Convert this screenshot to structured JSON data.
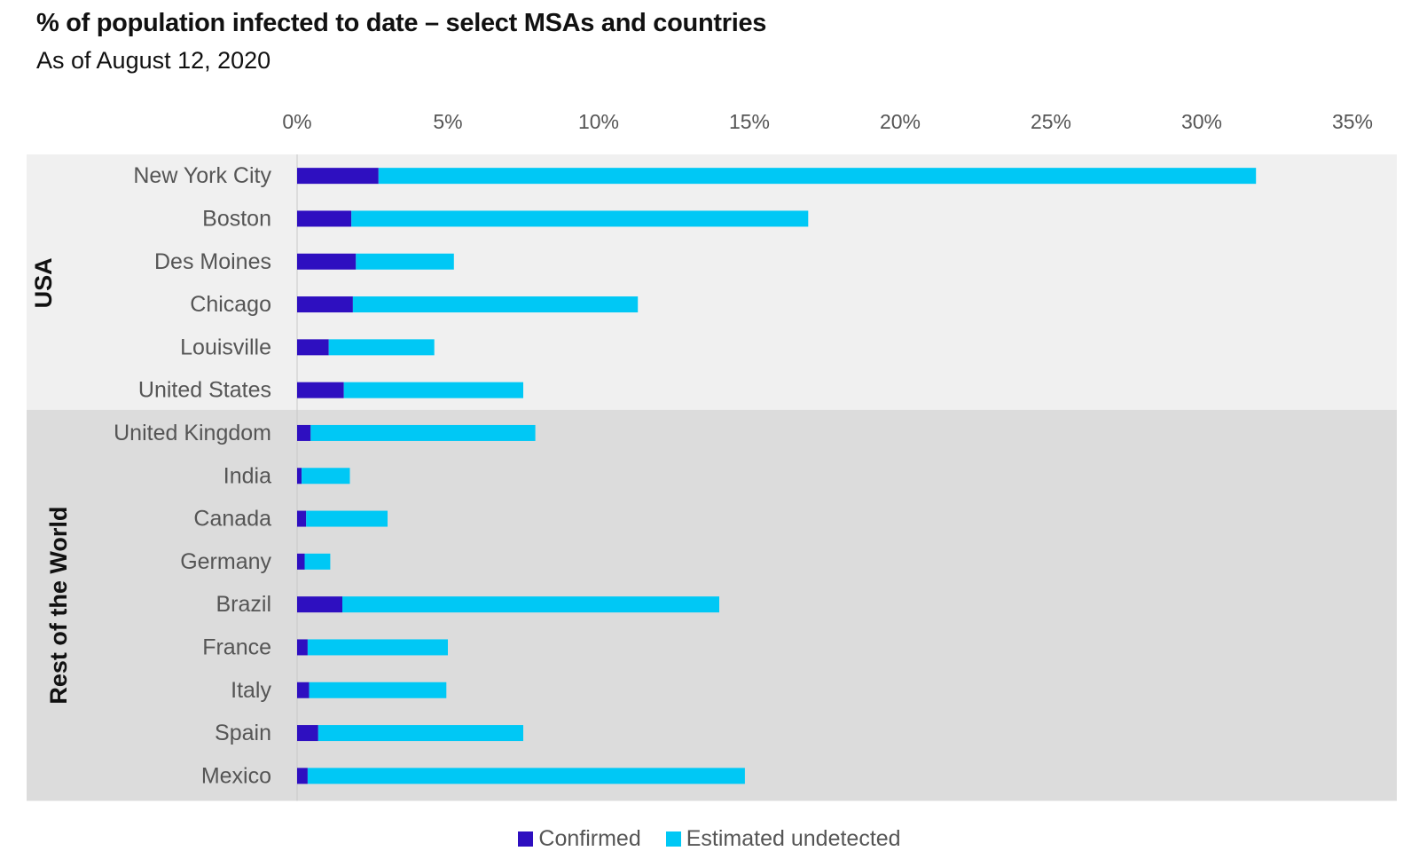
{
  "header": {
    "title": "% of population infected to date – select MSAs and countries",
    "subtitle": "As of August 12, 2020"
  },
  "colors": {
    "confirmed": "#2e0fc0",
    "undetected": "#00c8f5",
    "usa_band": "#f0f0f0",
    "row_band": "#dcdcdc"
  },
  "chart_data": {
    "type": "bar",
    "orientation": "horizontal",
    "stacked": true,
    "title": "% of population infected to date – select MSAs and countries",
    "subtitle": "As of August 12, 2020",
    "xlim": [
      0,
      35
    ],
    "x_ticks": [
      "0%",
      "5%",
      "10%",
      "15%",
      "20%",
      "25%",
      "30%",
      "35%"
    ],
    "x_axis_position": "top",
    "legend_position": "bottom",
    "groups": [
      {
        "label": "USA",
        "categories": [
          "New York City",
          "Boston",
          "Des Moines",
          "Chicago",
          "Louisville",
          "United States"
        ]
      },
      {
        "label": "Rest of the World",
        "categories": [
          "United Kingdom",
          "India",
          "Canada",
          "Germany",
          "Brazil",
          "France",
          "Italy",
          "Spain",
          "Mexico"
        ]
      }
    ],
    "categories": [
      "New York City",
      "Boston",
      "Des Moines",
      "Chicago",
      "Louisville",
      "United States",
      "United Kingdom",
      "India",
      "Canada",
      "Germany",
      "Brazil",
      "France",
      "Italy",
      "Spain",
      "Mexico"
    ],
    "series": [
      {
        "name": "Confirmed",
        "values": [
          2.7,
          1.8,
          1.95,
          1.85,
          1.05,
          1.55,
          0.45,
          0.15,
          0.3,
          0.25,
          1.5,
          0.35,
          0.4,
          0.7,
          0.35
        ]
      },
      {
        "name": "Estimated undetected",
        "values": [
          29.1,
          15.15,
          3.25,
          9.45,
          3.5,
          5.95,
          7.45,
          1.6,
          2.7,
          0.85,
          12.5,
          4.65,
          4.55,
          6.8,
          14.5
        ]
      }
    ]
  }
}
